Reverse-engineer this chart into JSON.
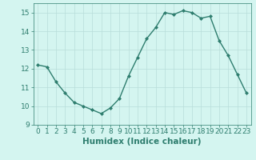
{
  "x": [
    0,
    1,
    2,
    3,
    4,
    5,
    6,
    7,
    8,
    9,
    10,
    11,
    12,
    13,
    14,
    15,
    16,
    17,
    18,
    19,
    20,
    21,
    22,
    23
  ],
  "y": [
    12.2,
    12.1,
    11.3,
    10.7,
    10.2,
    10.0,
    9.8,
    9.6,
    9.9,
    10.4,
    11.6,
    12.6,
    13.6,
    14.2,
    15.0,
    14.9,
    15.1,
    15.0,
    14.7,
    14.8,
    13.5,
    12.7,
    11.7,
    10.7
  ],
  "xlabel": "Humidex (Indice chaleur)",
  "ylim": [
    9,
    15.5
  ],
  "xlim": [
    -0.5,
    23.5
  ],
  "yticks": [
    9,
    10,
    11,
    12,
    13,
    14,
    15
  ],
  "xticks": [
    0,
    1,
    2,
    3,
    4,
    5,
    6,
    7,
    8,
    9,
    10,
    11,
    12,
    13,
    14,
    15,
    16,
    17,
    18,
    19,
    20,
    21,
    22,
    23
  ],
  "line_color": "#2e7d6e",
  "marker": "D",
  "marker_size": 2.0,
  "bg_color": "#d4f5f0",
  "grid_color": "#b8deda",
  "xlabel_fontsize": 7.5,
  "tick_fontsize": 6.5,
  "line_width": 1.0
}
